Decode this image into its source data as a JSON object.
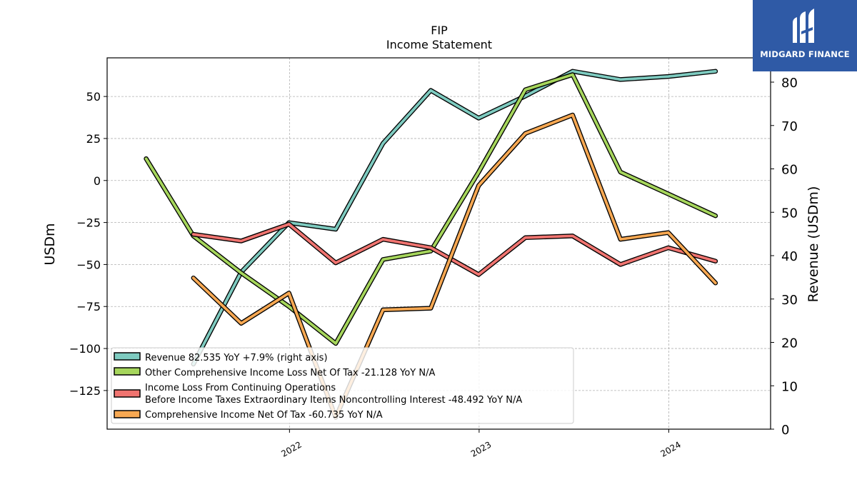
{
  "chart_data": {
    "type": "line",
    "title": "FIP",
    "subtitle": "Income Statement",
    "ylabel_left": "USDm",
    "ylabel_right": "Revenue (USDm)",
    "ylim_left": [
      -148,
      73
    ],
    "ylim_right": [
      0,
      85.6
    ],
    "yticks_left": [
      50,
      25,
      0,
      -25,
      -50,
      -75,
      -100,
      -125
    ],
    "yticks_left_labels": [
      "50",
      "25",
      "0",
      "−25",
      "−50",
      "−75",
      "−100",
      "−125"
    ],
    "yticks_right": [
      80,
      70,
      60,
      50,
      40,
      30,
      20,
      10,
      0
    ],
    "yticks_right_labels": [
      "80",
      "70",
      "60",
      "50",
      "40",
      "30",
      "20",
      "10",
      "0"
    ],
    "xlim": [
      "2021-01-15",
      "2024-07-15"
    ],
    "xticks": [
      "2022-01-01",
      "2023-01-01",
      "2024-01-01"
    ],
    "xtick_labels": [
      "2022",
      "2023",
      "2024"
    ],
    "grid": true,
    "legend_position": "lower-left",
    "series": [
      {
        "name": "Revenue  82.535 YoY +7.9% (right axis)",
        "axis": "right",
        "color": "#7ecbc0",
        "x": [
          "2021-06-30",
          "2021-09-30",
          "2021-12-31",
          "2022-03-31",
          "2022-06-30",
          "2022-09-30",
          "2022-12-31",
          "2023-03-31",
          "2023-06-30",
          "2023-09-30",
          "2023-12-31",
          "2024-03-31"
        ],
        "values": [
          15.0,
          36.2,
          47.6,
          46.1,
          65.9,
          78.1,
          71.7,
          76.8,
          82.5,
          80.6,
          81.3,
          82.5
        ]
      },
      {
        "name": "Other Comprehensive Income Loss Net Of Tax  -21.128 YoY N/A",
        "axis": "left",
        "color": "#a6d65c",
        "x": [
          "2021-03-31",
          "2021-06-30",
          "2021-09-30",
          "2021-12-31",
          "2022-03-31",
          "2022-06-30",
          "2022-09-30",
          "2022-12-31",
          "2023-03-31",
          "2023-06-30",
          "2023-09-30",
          "2023-12-31",
          "2024-03-31"
        ],
        "values": [
          13,
          -33,
          -55,
          -75,
          -97,
          -47,
          -42,
          5,
          54,
          63,
          5,
          -8,
          -21
        ]
      },
      {
        "name": "Income Loss From Continuing Operations\nBefore Income Taxes Extraordinary Items Noncontrolling Interest  -48.492 YoY N/A",
        "axis": "left",
        "color": "#f07470",
        "x": [
          "2021-06-30",
          "2021-09-30",
          "2021-12-31",
          "2022-03-31",
          "2022-06-30",
          "2022-09-30",
          "2022-12-31",
          "2023-03-31",
          "2023-06-30",
          "2023-09-30",
          "2023-12-31",
          "2024-03-31"
        ],
        "values": [
          -32,
          -36,
          -26,
          -49,
          -35,
          -40,
          -56,
          -34,
          -33,
          -50,
          -40,
          -48
        ]
      },
      {
        "name": "Comprehensive Income Net Of Tax  -60.735 YoY N/A",
        "axis": "left",
        "color": "#f7a852",
        "x": [
          "2021-06-30",
          "2021-09-30",
          "2021-12-31",
          "2022-03-31",
          "2022-06-30",
          "2022-09-30",
          "2022-12-31",
          "2023-03-31",
          "2023-06-30",
          "2023-09-30",
          "2023-12-31",
          "2024-03-31"
        ],
        "values": [
          -58,
          -85,
          -67,
          -141,
          -77,
          -76,
          -3,
          28,
          39,
          -35,
          -31,
          -61
        ]
      }
    ]
  },
  "logo": {
    "text": "MIDGARD FINANCE",
    "background": "#2f5aa6"
  }
}
